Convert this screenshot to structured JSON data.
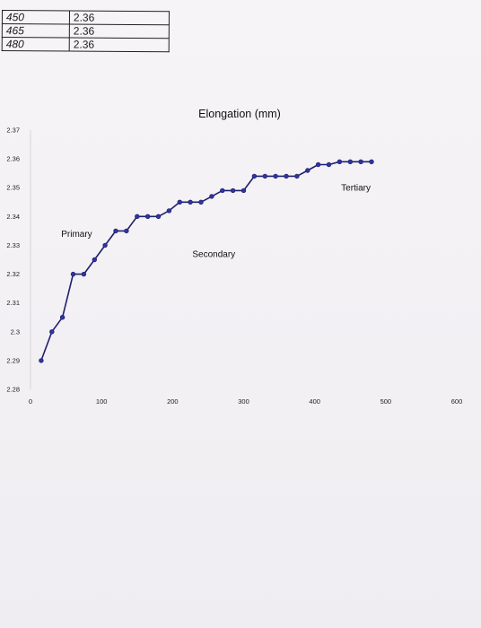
{
  "table": {
    "rows": [
      {
        "x": "450",
        "y": "2.36"
      },
      {
        "x": "465",
        "y": "2.36"
      },
      {
        "x": "480",
        "y": "2.36"
      }
    ]
  },
  "chart_data": {
    "type": "line",
    "title": "Elongation (mm)",
    "xlabel": "",
    "ylabel": "",
    "xlim": [
      0,
      600
    ],
    "ylim": [
      2.28,
      2.37
    ],
    "x_ticks": [
      "0",
      "100",
      "200",
      "300",
      "400",
      "500",
      "600"
    ],
    "y_ticks": [
      "2.37",
      "2.36",
      "2.35",
      "2.34",
      "2.33",
      "2.32",
      "2.31",
      "2.3",
      "2.29",
      "2.28"
    ],
    "grid": false,
    "legend": "none",
    "line_color": "#1f1f6e",
    "marker_color": "#2e35a0",
    "series": [
      {
        "x": [
          15,
          30,
          45,
          60,
          75,
          90,
          105,
          120,
          135,
          150,
          165,
          180,
          195,
          210,
          225,
          240,
          255,
          270,
          285,
          300,
          315,
          330,
          345,
          360,
          375,
          390,
          405,
          420,
          435,
          450,
          465,
          480
        ],
        "y": [
          2.29,
          2.3,
          2.305,
          2.32,
          2.32,
          2.325,
          2.33,
          2.335,
          2.335,
          2.34,
          2.34,
          2.34,
          2.342,
          2.345,
          2.345,
          2.345,
          2.347,
          2.349,
          2.349,
          2.349,
          2.354,
          2.354,
          2.354,
          2.354,
          2.354,
          2.356,
          2.358,
          2.358,
          2.359,
          2.359,
          2.359,
          2.359
        ]
      }
    ],
    "annotations": [
      {
        "text": "Primary",
        "x": 65,
        "y": 2.333
      },
      {
        "text": "Secondary",
        "x": 258,
        "y": 2.326
      },
      {
        "text": "Tertiary",
        "x": 458,
        "y": 2.349
      }
    ]
  }
}
